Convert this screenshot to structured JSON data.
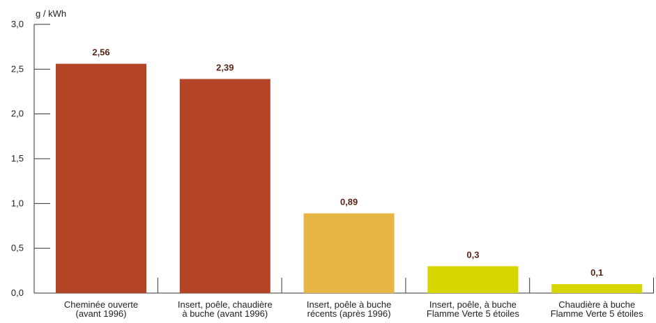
{
  "chart_data": {
    "type": "bar",
    "ylabel": "g / kWh",
    "ylim": [
      0,
      3.0
    ],
    "yticks": [
      "0,0",
      "0,5",
      "1,0",
      "1,5",
      "2,0",
      "2,5",
      "3,0"
    ],
    "yticks_values": [
      0,
      0.5,
      1.0,
      1.5,
      2.0,
      2.5,
      3.0
    ],
    "categories": [
      [
        "Cheminée ouverte",
        "(avant 1996)"
      ],
      [
        "Insert, poêle, chaudière",
        "à buche (avant 1996)"
      ],
      [
        "Insert, poêle à buche",
        "récents (après 1996)"
      ],
      [
        "Insert, poêle, à buche",
        "Flamme Verte 5 étoiles"
      ],
      [
        "Chaudière à buche",
        "Flamme Verte 5 étoiles"
      ]
    ],
    "values": [
      2.56,
      2.39,
      0.89,
      0.3,
      0.1
    ],
    "value_labels": [
      "2,56",
      "2,39",
      "0,89",
      "0,3",
      "0,1"
    ],
    "colors": [
      "#b34425",
      "#b34425",
      "#e8b547",
      "#d6d600",
      "#d6d600"
    ],
    "axis_color": "#333333",
    "value_label_color": "#5a2414",
    "grid": false,
    "legend": "none"
  }
}
